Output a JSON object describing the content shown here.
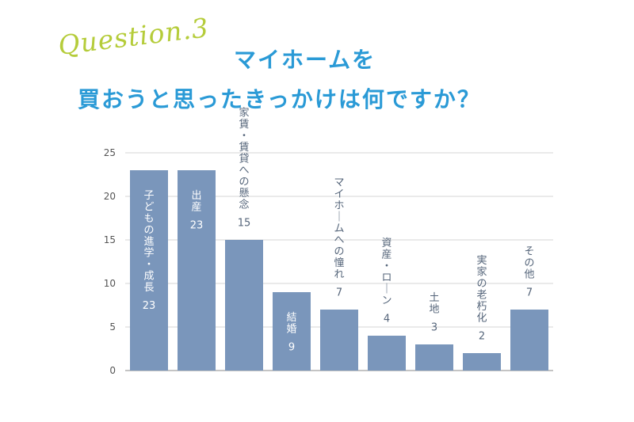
{
  "header": {
    "question_label": "Question.3",
    "title_line1": "マイホームを",
    "title_line2": "買おうと思ったきっかけは何ですか？"
  },
  "colors": {
    "bar": "#7a96bb",
    "title": "#2a9ad6",
    "accent": "#b5cc3a",
    "label_inside": "#ffffff",
    "label_outside": "#55657a"
  },
  "chart_data": {
    "type": "bar",
    "categories": [
      "子どもの進学・成長",
      "出産",
      "家賃・賃貸への懸念",
      "結婚",
      "マイホームへの憧れ",
      "資産・ローン",
      "土地",
      "実家の老朽化",
      "その他"
    ],
    "values": [
      23,
      23,
      15,
      9,
      7,
      4,
      3,
      2,
      7
    ],
    "ylim": [
      0,
      25
    ],
    "yticks": [
      0,
      5,
      10,
      15,
      20,
      25
    ],
    "grid": true,
    "title": "",
    "xlabel": "",
    "ylabel": ""
  }
}
